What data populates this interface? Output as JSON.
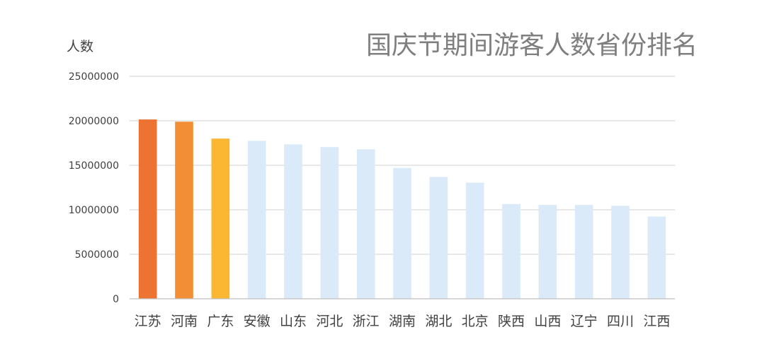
{
  "chart_data": {
    "type": "bar",
    "title": "国庆节期间游客人数省份排名",
    "ylabel": "人数",
    "xlabel": "",
    "ylim": [
      0,
      25000000
    ],
    "yticks": [
      0,
      5000000,
      10000000,
      15000000,
      20000000,
      25000000
    ],
    "ytick_labels": [
      "0",
      "5000000",
      "10000000",
      "15000000",
      "20000000",
      "25000000"
    ],
    "grid": true,
    "legend": "none",
    "categories": [
      "江苏",
      "河南",
      "广东",
      "安徽",
      "山东",
      "河北",
      "浙江",
      "湖南",
      "湖北",
      "北京",
      "陕西",
      "山西",
      "辽宁",
      "四川",
      "江西"
    ],
    "values": [
      20150000,
      19900000,
      18000000,
      17750000,
      17350000,
      17050000,
      16800000,
      14700000,
      13700000,
      13050000,
      10650000,
      10550000,
      10550000,
      10450000,
      9250000
    ],
    "bar_colors": [
      "#ed7332",
      "#f28f36",
      "#fbb731",
      "#dbeaf8",
      "#dbeaf8",
      "#dbeaf8",
      "#dbeaf8",
      "#dbeaf8",
      "#dbeaf8",
      "#dbeaf8",
      "#dbeaf8",
      "#dbeaf8",
      "#dbeaf8",
      "#dbeaf8",
      "#dbeaf8"
    ]
  }
}
